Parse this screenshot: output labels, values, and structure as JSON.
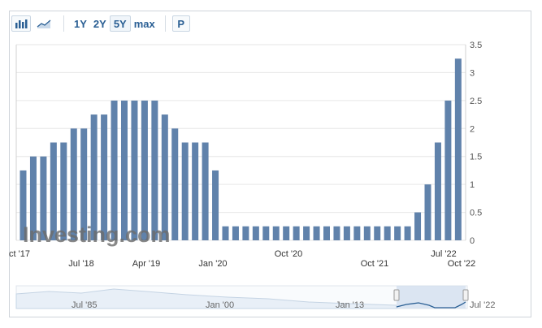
{
  "toolbar": {
    "bar_icon": "bar-chart-icon",
    "line_icon": "line-chart-icon",
    "ranges": [
      "1Y",
      "2Y",
      "5Y",
      "max"
    ],
    "active_range": "5Y",
    "print_label": "P"
  },
  "watermark": "Investing.com",
  "navigator": {
    "labels": [
      "Jul '85",
      "Jan '00",
      "Jan '13",
      "Jul '22"
    ]
  },
  "colors": {
    "bar": "#6082ab",
    "accent": "#2a5f94",
    "grid": "#e6e6e6"
  },
  "chart_data": {
    "type": "bar",
    "x_tick_labels": [
      "ct '17",
      "Jul '18",
      "Apr '19",
      "Jan '20",
      "Oct '20",
      "Oct '21",
      "Jul '22",
      "Oct '22"
    ],
    "y_tick_labels": [
      "0",
      "0.5",
      "1",
      "1.5",
      "2",
      "2.5",
      "3",
      "3.5"
    ],
    "ylim": [
      0,
      3.5
    ],
    "grid": true,
    "values": [
      1.25,
      1.5,
      1.5,
      1.75,
      1.75,
      2.0,
      2.0,
      2.25,
      2.25,
      2.5,
      2.5,
      2.5,
      2.5,
      2.5,
      2.25,
      2.0,
      1.75,
      1.75,
      1.75,
      1.25,
      0.25,
      0.25,
      0.25,
      0.25,
      0.25,
      0.25,
      0.25,
      0.25,
      0.25,
      0.25,
      0.25,
      0.25,
      0.25,
      0.25,
      0.25,
      0.25,
      0.25,
      0.25,
      0.25,
      0.5,
      1.0,
      1.75,
      2.5,
      3.25
    ]
  }
}
